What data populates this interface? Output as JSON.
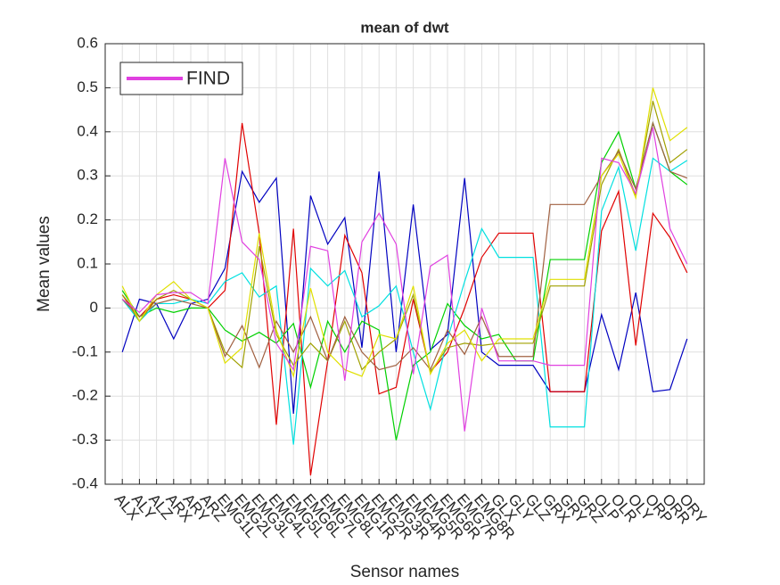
{
  "chart_data": {
    "type": "line",
    "title": "mean of dwt",
    "xlabel": "Sensor names",
    "ylabel": "Mean values",
    "categories": [
      "ALX",
      "ALY",
      "ALZ",
      "ARX",
      "ARY",
      "ARZ",
      "EMG1L",
      "EMG2L",
      "EMG3L",
      "EMG4L",
      "EMG5L",
      "EMG6L",
      "EMG7L",
      "EMG8L",
      "EMG1R",
      "EMG2R",
      "EMG3R",
      "EMG4R",
      "EMG5R",
      "EMG6R",
      "EMG7R",
      "EMG8R",
      "GLX",
      "GLY",
      "GLZ",
      "GRX",
      "GRY",
      "GRZ",
      "OLP",
      "OLR",
      "OLY",
      "ORP",
      "ORR",
      "ORY"
    ],
    "xlim": [
      0,
      35
    ],
    "ylim": [
      -0.4,
      0.6
    ],
    "yticks": [
      -0.4,
      -0.3,
      -0.2,
      -0.1,
      0,
      0.1,
      0.2,
      0.3,
      0.4,
      0.5,
      0.6
    ],
    "grid": true,
    "legend": "upper left",
    "series": [
      {
        "color": "#0000c0",
        "values": [
          -0.1,
          0.02,
          0.01,
          -0.07,
          0.01,
          0.02,
          0.09,
          0.31,
          0.24,
          0.295,
          -0.24,
          0.255,
          0.145,
          0.205,
          -0.09,
          0.31,
          -0.1,
          0.235,
          -0.095,
          -0.06,
          0.295,
          -0.1,
          -0.13,
          -0.13,
          -0.13,
          -0.19,
          -0.19,
          -0.19,
          -0.015,
          -0.14,
          0.035,
          -0.19,
          -0.185,
          -0.07
        ]
      },
      {
        "color": "#e00000",
        "values": [
          0.03,
          -0.02,
          0.02,
          0.03,
          0.02,
          0.0,
          0.04,
          0.42,
          0.17,
          -0.265,
          0.18,
          -0.38,
          -0.12,
          0.165,
          0.08,
          -0.195,
          -0.18,
          0.02,
          -0.145,
          -0.1,
          0.0,
          0.115,
          0.17,
          0.17,
          0.17,
          -0.19,
          -0.19,
          -0.19,
          0.175,
          0.265,
          -0.085,
          0.215,
          0.16,
          0.08
        ]
      },
      {
        "color": "#00d000",
        "values": [
          0.04,
          -0.02,
          0.0,
          -0.01,
          0.0,
          0.0,
          -0.05,
          -0.075,
          -0.055,
          -0.08,
          -0.035,
          -0.18,
          -0.03,
          -0.1,
          -0.03,
          -0.05,
          -0.3,
          -0.13,
          -0.1,
          0.01,
          -0.04,
          -0.07,
          -0.06,
          -0.12,
          -0.12,
          0.11,
          0.11,
          0.11,
          0.33,
          0.4,
          0.27,
          0.42,
          0.31,
          0.28
        ]
      },
      {
        "color": "#00e0e0",
        "values": [
          0.02,
          -0.03,
          0.01,
          0.01,
          0.02,
          0.01,
          0.06,
          0.08,
          0.025,
          0.05,
          -0.31,
          0.09,
          0.05,
          0.085,
          -0.02,
          0.005,
          0.05,
          -0.1,
          -0.23,
          -0.07,
          0.06,
          0.18,
          0.115,
          0.115,
          0.115,
          -0.27,
          -0.27,
          -0.27,
          0.22,
          0.32,
          0.13,
          0.34,
          0.31,
          0.335
        ]
      },
      {
        "color": "#a0a000",
        "values": [
          0.03,
          -0.03,
          0.02,
          0.04,
          0.02,
          0.0,
          -0.1,
          -0.135,
          0.14,
          -0.06,
          -0.13,
          -0.08,
          -0.12,
          -0.03,
          -0.14,
          -0.1,
          -0.07,
          0.03,
          -0.145,
          -0.09,
          -0.08,
          -0.085,
          -0.08,
          -0.08,
          -0.08,
          0.05,
          0.05,
          0.05,
          0.28,
          0.36,
          0.255,
          0.47,
          0.33,
          0.36
        ]
      },
      {
        "color": "#a06040",
        "values": [
          0.02,
          -0.02,
          0.01,
          0.02,
          0.01,
          0.0,
          -0.11,
          -0.04,
          -0.135,
          -0.03,
          -0.1,
          -0.02,
          -0.12,
          -0.02,
          -0.1,
          -0.14,
          -0.13,
          -0.09,
          -0.14,
          -0.05,
          -0.105,
          -0.02,
          -0.11,
          -0.11,
          -0.11,
          0.235,
          0.235,
          0.235,
          0.3,
          0.355,
          0.27,
          0.42,
          0.31,
          0.295
        ]
      },
      {
        "color": "#e0e000",
        "values": [
          0.05,
          -0.03,
          0.03,
          0.06,
          0.02,
          0.0,
          -0.125,
          -0.09,
          0.17,
          -0.05,
          -0.155,
          0.045,
          -0.1,
          -0.14,
          -0.155,
          -0.06,
          -0.07,
          0.05,
          -0.15,
          -0.08,
          -0.05,
          -0.12,
          -0.07,
          -0.07,
          -0.07,
          0.065,
          0.065,
          0.065,
          0.3,
          0.35,
          0.25,
          0.5,
          0.38,
          0.41
        ]
      },
      {
        "name": "FIND",
        "color": "#e040e0",
        "values": [
          0.02,
          -0.01,
          0.03,
          0.035,
          0.035,
          0.01,
          0.34,
          0.15,
          0.11,
          -0.08,
          -0.14,
          0.14,
          0.13,
          -0.165,
          0.15,
          0.215,
          0.145,
          -0.15,
          0.095,
          0.12,
          -0.28,
          0.0,
          -0.12,
          -0.12,
          -0.12,
          -0.13,
          -0.13,
          -0.13,
          0.34,
          0.33,
          0.26,
          0.41,
          0.18,
          0.1
        ]
      }
    ]
  }
}
